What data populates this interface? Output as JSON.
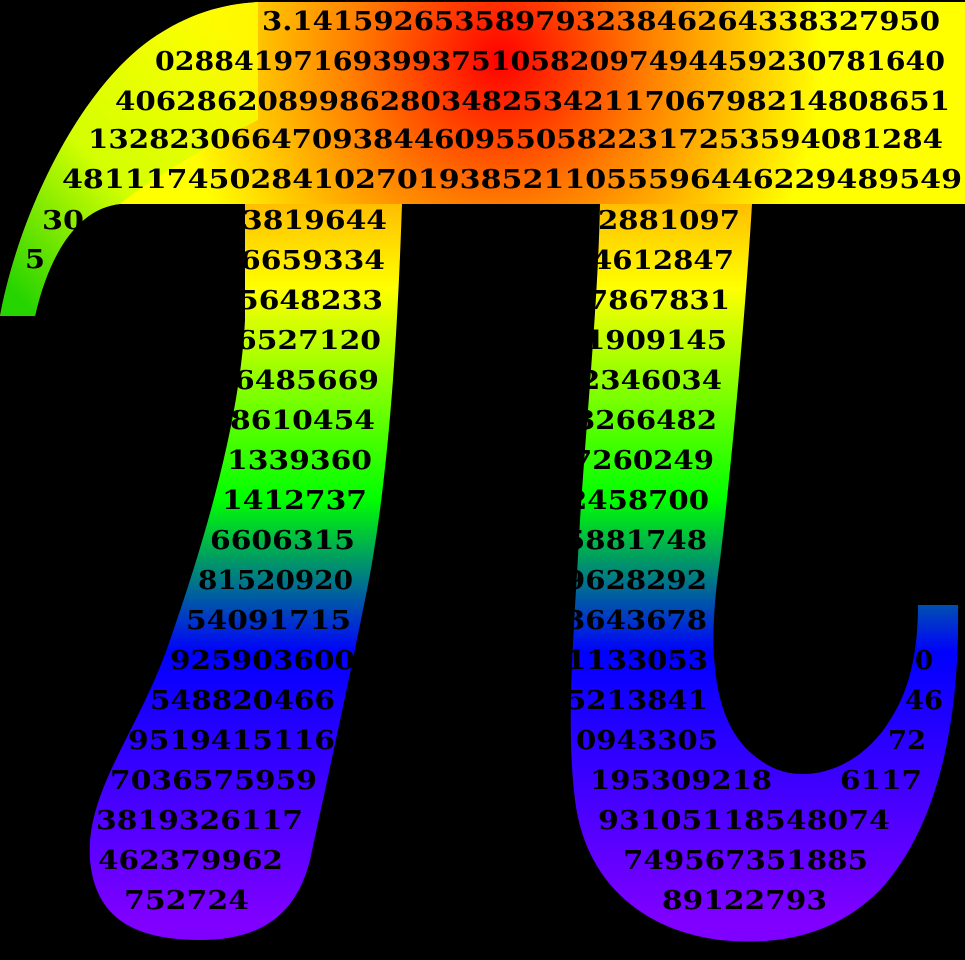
{
  "artwork": {
    "background_color": "#000000",
    "digit_color": "#000000",
    "gradient_colors": [
      "#ff0000",
      "#ff8000",
      "#ffff00",
      "#00ff00",
      "#0000ff",
      "#8000ff"
    ]
  },
  "digits": {
    "crossbar": [
      "3.14159265358979323846264338327950",
      "0288419716939937510582097494459230781640",
      "40628620899862803482534211706798214808651",
      "132823066470938446095505822317253594081284",
      "4811174502841027019385211055596446229489549"
    ],
    "hook": [
      "30",
      "5"
    ],
    "left_leg": [
      "3819644",
      "6659334",
      "5648233",
      "6527120",
      "6485669",
      "8610454",
      "1339360",
      "1412737",
      "6606315",
      "81520920",
      "54091715",
      "925903600",
      "548820466",
      "9519415116",
      "7036575959",
      "3819326117",
      "462379962",
      "752724"
    ],
    "right_leg": [
      "2881097",
      "4612847",
      "7867831",
      "1909145",
      "2346034",
      "3266482",
      "7260249",
      "2458700",
      "5881748",
      "9628292",
      "3643678",
      "1133053",
      "5213841",
      "0943305",
      "195309218",
      "93105118548074",
      "749567351885",
      "89122793"
    ],
    "tail": [
      "0",
      "46",
      "72",
      "6117"
    ]
  }
}
